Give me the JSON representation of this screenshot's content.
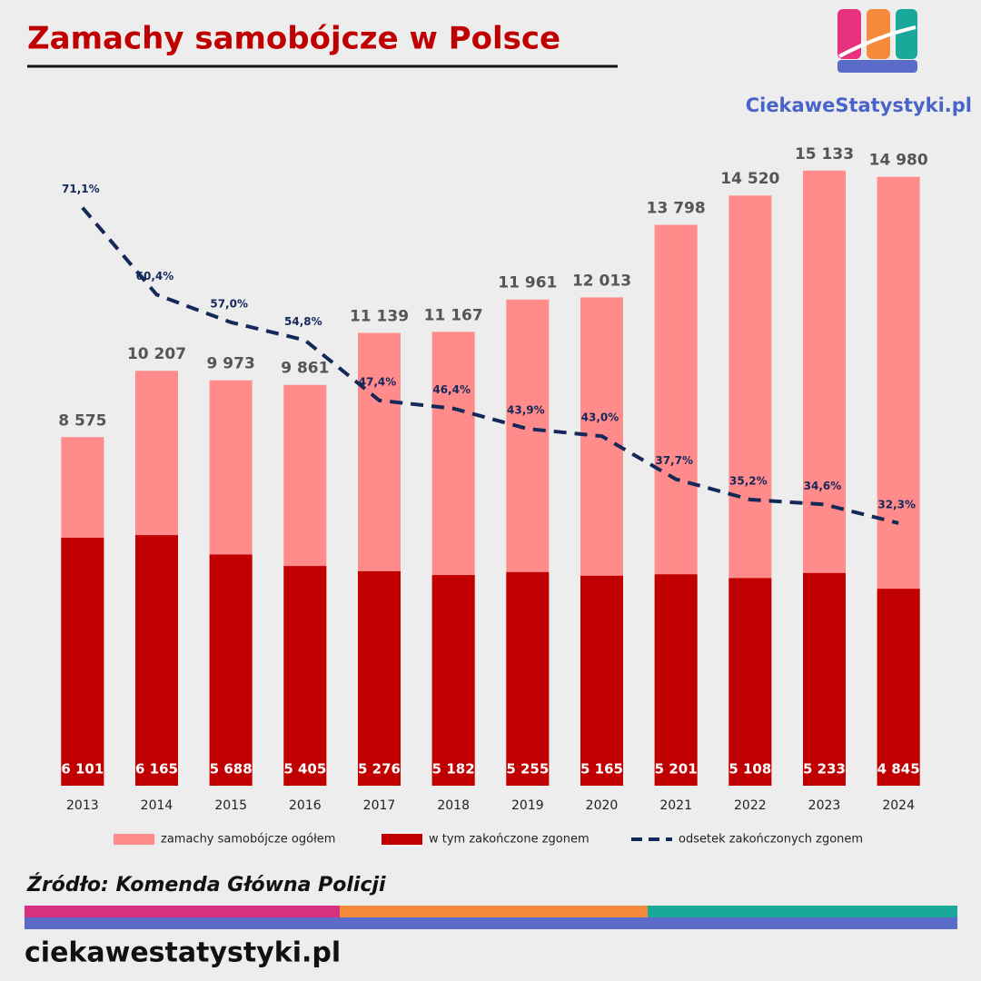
{
  "brand": "CiekaweStatystyki.pl",
  "source": "Źródło: Komenda Główna Policji",
  "footer": "ciekawestatystyki.pl",
  "chart_data": {
    "type": "bar",
    "title": "Zamachy samobójcze w Polsce",
    "categories": [
      "2013",
      "2014",
      "2015",
      "2016",
      "2017",
      "2018",
      "2019",
      "2020",
      "2021",
      "2022",
      "2023",
      "2024"
    ],
    "series": [
      {
        "name": "zamachy samobójcze ogółem",
        "color": "#ff8b8b",
        "values": [
          8575,
          10207,
          9973,
          9861,
          11139,
          11167,
          11961,
          12013,
          13798,
          14520,
          15133,
          14980
        ],
        "value_labels": [
          "8 575",
          "10 207",
          "9 973",
          "9 861",
          "11 139",
          "11 167",
          "11 961",
          "12 013",
          "13 798",
          "14 520",
          "15 133",
          "14 980"
        ]
      },
      {
        "name": "w tym zakończone zgonem",
        "color": "#c00000",
        "values": [
          6101,
          6165,
          5688,
          5405,
          5276,
          5182,
          5255,
          5165,
          5201,
          5108,
          5233,
          4845
        ],
        "value_labels": [
          "6 101",
          "6 165",
          "5 688",
          "5 405",
          "5 276",
          "5 182",
          "5 255",
          "5 165",
          "5 201",
          "5 108",
          "5 233",
          "4 845"
        ]
      },
      {
        "name": "odsetek zakończonych zgonem",
        "color": "#14285a",
        "type": "line",
        "axis": "y2",
        "values": [
          71.1,
          60.4,
          57.0,
          54.8,
          47.4,
          46.4,
          43.9,
          43.0,
          37.7,
          35.2,
          34.6,
          32.3
        ],
        "value_labels": [
          "71,1%",
          "60,4%",
          "57,0%",
          "54,8%",
          "47,4%",
          "46,4%",
          "43,9%",
          "43,0%",
          "37,7%",
          "35,2%",
          "34,6%",
          "32,3%"
        ]
      }
    ],
    "ylim": [
      0,
      16000
    ],
    "y2lim": [
      0,
      80
    ]
  }
}
